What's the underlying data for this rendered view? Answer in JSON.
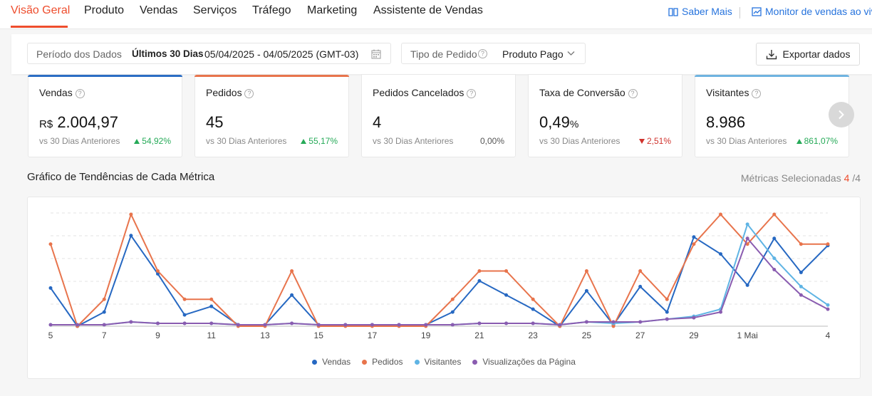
{
  "nav": {
    "tabs": [
      "Visão Geral",
      "Produto",
      "Vendas",
      "Serviços",
      "Tráfego",
      "Marketing",
      "Assistente de Vendas"
    ],
    "active_tab": "Visão Geral",
    "saber_mais": "Saber Mais",
    "monitor": "Monitor de vendas ao viv"
  },
  "filters": {
    "period_label": "Período dos Dados",
    "period_value": "Últimos 30 Dias",
    "period_range": "05/04/2025 - 04/05/2025 (GMT-03)",
    "order_type_label": "Tipo de Pedido",
    "order_type_value": "Produto Pago",
    "export_label": "Exportar dados"
  },
  "cards": [
    {
      "title": "Vendas",
      "currency": "R$",
      "value": "2.004,97",
      "compare": "vs 30 Dias Anteriores",
      "change": "54,92%",
      "trend": "up",
      "accent": "#2673dd"
    },
    {
      "title": "Pedidos",
      "value": "45",
      "compare": "vs 30 Dias Anteriores",
      "change": "55,17%",
      "trend": "up",
      "accent": "#ee6a3c"
    },
    {
      "title": "Pedidos Cancelados",
      "value": "4",
      "compare": "vs 30 Dias Anteriores",
      "change": "0,00%",
      "trend": "flat"
    },
    {
      "title": "Taxa de Conversão",
      "value": "0,49",
      "unit": "%",
      "compare": "vs 30 Dias Anteriores",
      "change": "2,51%",
      "trend": "down"
    },
    {
      "title": "Visitantes",
      "value": "8.986",
      "compare": "vs 30 Dias Anteriores",
      "change": "861,07%",
      "trend": "up",
      "accent": "#6fb3e0"
    }
  ],
  "chart_section": {
    "title": "Gráfico de Tendências de Cada Métrica",
    "selected_label": "Métricas Selecionadas",
    "selected_count": "4",
    "selected_total": "/4"
  },
  "chart_data": {
    "type": "line",
    "x": [
      "5",
      "6",
      "7",
      "8",
      "9",
      "10",
      "11",
      "12",
      "13",
      "14",
      "15",
      "16",
      "17",
      "18",
      "19",
      "20",
      "21",
      "22",
      "23",
      "24",
      "25",
      "26",
      "27",
      "28",
      "29",
      "30",
      "1 Mai",
      "2",
      "3",
      "4"
    ],
    "x_tick_labels": [
      "5",
      "7",
      "9",
      "11",
      "13",
      "15",
      "17",
      "19",
      "21",
      "23",
      "25",
      "27",
      "29",
      "1 Mai",
      "4"
    ],
    "y_hidden": true,
    "grid": "dashed horizontal",
    "series": [
      {
        "name": "Vendas",
        "color": "#2668c2",
        "values": [
          27,
          0,
          10,
          64,
          37,
          8,
          14,
          1,
          1,
          22,
          1,
          1,
          1,
          1,
          1,
          10,
          32,
          22,
          12,
          0,
          25,
          1,
          28,
          10,
          63,
          51,
          29,
          62,
          38,
          57
        ]
      },
      {
        "name": "Pedidos",
        "color": "#e8744c",
        "values": [
          58,
          0,
          19,
          79,
          39,
          19,
          19,
          0,
          0,
          39,
          0,
          0,
          0,
          0,
          0,
          19,
          39,
          39,
          19,
          0,
          39,
          0,
          39,
          19,
          58,
          79,
          58,
          79,
          58,
          58
        ]
      },
      {
        "name": "Visitantes",
        "color": "#5fb4e4",
        "values": [
          1,
          1,
          1,
          3,
          2,
          2,
          2,
          1,
          1,
          2,
          1,
          1,
          1,
          1,
          1,
          1,
          2,
          2,
          2,
          1,
          3,
          2,
          3,
          5,
          7,
          12,
          72,
          48,
          28,
          15
        ]
      },
      {
        "name": "Visualizações da Página",
        "color": "#8a5cb0",
        "values": [
          1,
          1,
          1,
          3,
          2,
          2,
          2,
          1,
          1,
          2,
          1,
          1,
          1,
          1,
          1,
          1,
          2,
          2,
          2,
          1,
          3,
          3,
          3,
          5,
          6,
          10,
          62,
          40,
          22,
          12
        ]
      }
    ]
  }
}
